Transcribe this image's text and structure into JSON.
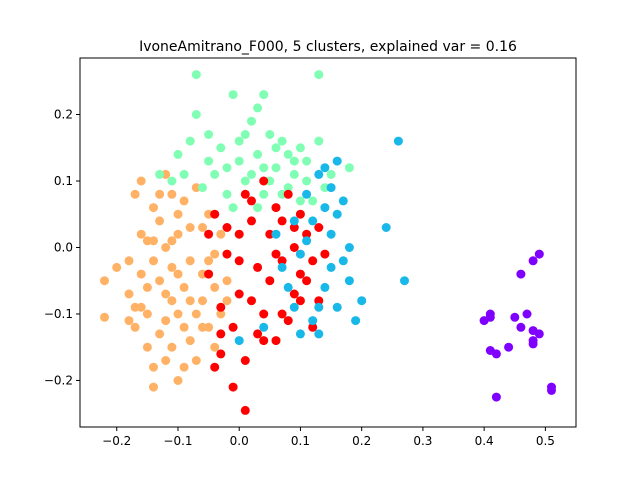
{
  "chart_data": {
    "type": "scatter",
    "title": "IvoneAmitrano_F000, 5 clusters, explained var = 0.16",
    "xlabel": "",
    "ylabel": "",
    "xlim": [
      -0.26,
      0.55
    ],
    "ylim": [
      -0.27,
      0.285
    ],
    "x_ticks": [
      -0.2,
      -0.1,
      0.0,
      0.1,
      0.2,
      0.3,
      0.4,
      0.5
    ],
    "x_tick_labels": [
      "−0.2",
      "−0.1",
      "0.0",
      "0.1",
      "0.2",
      "0.3",
      "0.4",
      "0.5"
    ],
    "y_ticks": [
      -0.2,
      -0.1,
      0.0,
      0.1,
      0.2
    ],
    "y_tick_labels": [
      "−0.2",
      "−0.1",
      "0.0",
      "0.1",
      "0.2"
    ],
    "grid": false,
    "legend": "none",
    "series": [
      {
        "color": "#ffb266",
        "points": [
          [
            -0.22,
            -0.05
          ],
          [
            -0.22,
            -0.105
          ],
          [
            -0.2,
            -0.03
          ],
          [
            -0.18,
            -0.02
          ],
          [
            -0.18,
            -0.07
          ],
          [
            -0.18,
            -0.11
          ],
          [
            -0.17,
            -0.12
          ],
          [
            -0.17,
            0.08
          ],
          [
            -0.16,
            0.1
          ],
          [
            -0.16,
            -0.04
          ],
          [
            -0.16,
            -0.09
          ],
          [
            -0.15,
            -0.1
          ],
          [
            -0.15,
            -0.15
          ],
          [
            -0.15,
            0.01
          ],
          [
            -0.14,
            0.06
          ],
          [
            -0.14,
            -0.21
          ],
          [
            -0.14,
            -0.18
          ],
          [
            -0.13,
            -0.13
          ],
          [
            -0.13,
            0.04
          ],
          [
            -0.12,
            -0.07
          ],
          [
            -0.12,
            0.0
          ],
          [
            -0.12,
            0.11
          ],
          [
            -0.11,
            -0.03
          ],
          [
            -0.11,
            -0.15
          ],
          [
            -0.11,
            0.08
          ],
          [
            -0.1,
            -0.1
          ],
          [
            -0.1,
            -0.2
          ],
          [
            -0.1,
            0.05
          ],
          [
            -0.09,
            -0.18
          ],
          [
            -0.09,
            -0.06
          ],
          [
            -0.09,
            0.07
          ],
          [
            -0.08,
            -0.14
          ],
          [
            -0.08,
            -0.02
          ],
          [
            -0.08,
            0.03
          ],
          [
            -0.07,
            -0.1
          ],
          [
            -0.07,
            0.09
          ],
          [
            -0.06,
            -0.08
          ],
          [
            -0.06,
            -0.04
          ],
          [
            -0.06,
            0.03
          ],
          [
            -0.05,
            -0.12
          ],
          [
            -0.05,
            0.05
          ],
          [
            -0.04,
            -0.06
          ],
          [
            -0.04,
            -0.01
          ],
          [
            -0.03,
            -0.1
          ],
          [
            -0.03,
            0.02
          ],
          [
            -0.02,
            -0.05
          ],
          [
            -0.13,
            -0.05
          ],
          [
            -0.14,
            -0.02
          ],
          [
            -0.12,
            -0.11
          ],
          [
            -0.15,
            -0.06
          ],
          [
            -0.1,
            -0.04
          ],
          [
            -0.11,
            0.01
          ],
          [
            -0.09,
            -0.12
          ],
          [
            -0.13,
            0.08
          ],
          [
            -0.16,
            0.02
          ],
          [
            -0.07,
            -0.17
          ],
          [
            -0.12,
            -0.17
          ],
          [
            -0.17,
            -0.09
          ],
          [
            -0.08,
            -0.08
          ],
          [
            -0.1,
            0.02
          ],
          [
            -0.14,
            0.01
          ],
          [
            -0.11,
            -0.08
          ],
          [
            -0.06,
            -0.12
          ],
          [
            -0.05,
            -0.02
          ],
          [
            -0.04,
            -0.15
          ],
          [
            -0.02,
            -0.08
          ]
        ]
      },
      {
        "color": "#80ffb4",
        "points": [
          [
            -0.07,
            0.26
          ],
          [
            -0.01,
            0.23
          ],
          [
            0.03,
            0.21
          ],
          [
            0.04,
            0.23
          ],
          [
            0.13,
            0.26
          ],
          [
            -0.07,
            0.2
          ],
          [
            -0.05,
            0.17
          ],
          [
            -0.03,
            0.15
          ],
          [
            -0.02,
            0.12
          ],
          [
            0.0,
            0.16
          ],
          [
            0.01,
            0.1
          ],
          [
            0.02,
            0.19
          ],
          [
            0.03,
            0.14
          ],
          [
            0.04,
            0.08
          ],
          [
            0.05,
            0.17
          ],
          [
            0.06,
            0.12
          ],
          [
            0.07,
            0.16
          ],
          [
            0.08,
            0.14
          ],
          [
            0.08,
            0.09
          ],
          [
            0.09,
            0.11
          ],
          [
            0.1,
            0.15
          ],
          [
            0.11,
            0.1
          ],
          [
            0.12,
            0.07
          ],
          [
            0.13,
            0.16
          ],
          [
            0.14,
            0.09
          ],
          [
            0.15,
            0.11
          ],
          [
            0.18,
            0.12
          ],
          [
            -0.1,
            0.14
          ],
          [
            -0.09,
            0.11
          ],
          [
            -0.08,
            0.16
          ],
          [
            -0.06,
            0.09
          ],
          [
            -0.05,
            0.13
          ],
          [
            -0.04,
            0.11
          ],
          [
            -0.02,
            0.08
          ],
          [
            0.0,
            0.13
          ],
          [
            0.02,
            0.11
          ],
          [
            0.03,
            0.06
          ],
          [
            0.05,
            0.1
          ],
          [
            0.06,
            0.15
          ],
          [
            0.07,
            0.08
          ],
          [
            0.09,
            0.13
          ],
          [
            0.1,
            0.07
          ],
          [
            0.11,
            0.13
          ],
          [
            -0.13,
            0.11
          ],
          [
            -0.11,
            0.1
          ],
          [
            -0.01,
            0.06
          ],
          [
            0.01,
            0.17
          ],
          [
            0.04,
            0.12
          ]
        ]
      },
      {
        "color": "#ff0000",
        "points": [
          [
            0.01,
            -0.245
          ],
          [
            -0.01,
            -0.21
          ],
          [
            -0.04,
            -0.18
          ],
          [
            -0.03,
            -0.16
          ],
          [
            0.01,
            -0.17
          ],
          [
            0.04,
            -0.14
          ],
          [
            0.07,
            -0.1
          ],
          [
            0.09,
            -0.07
          ],
          [
            0.1,
            -0.04
          ],
          [
            0.12,
            -0.02
          ],
          [
            0.14,
            -0.01
          ],
          [
            0.13,
            0.03
          ],
          [
            0.1,
            0.05
          ],
          [
            0.08,
            0.08
          ],
          [
            0.06,
            0.06
          ],
          [
            0.04,
            0.1
          ],
          [
            0.02,
            0.04
          ],
          [
            0.0,
            0.02
          ],
          [
            -0.02,
            -0.01
          ],
          [
            -0.04,
            0.05
          ],
          [
            -0.05,
            -0.04
          ],
          [
            -0.03,
            -0.09
          ],
          [
            -0.01,
            -0.12
          ],
          [
            0.02,
            -0.08
          ],
          [
            0.05,
            -0.05
          ],
          [
            0.07,
            -0.02
          ],
          [
            0.09,
            0.0
          ],
          [
            0.11,
            0.02
          ],
          [
            0.08,
            -0.11
          ],
          [
            0.06,
            -0.14
          ],
          [
            0.03,
            -0.13
          ],
          [
            0.0,
            -0.07
          ],
          [
            -0.02,
            0.03
          ],
          [
            0.01,
            0.08
          ],
          [
            0.05,
            0.02
          ],
          [
            0.07,
            0.04
          ],
          [
            0.03,
            -0.03
          ],
          [
            0.1,
            -0.08
          ],
          [
            0.12,
            -0.12
          ],
          [
            0.13,
            -0.08
          ],
          [
            -0.05,
            0.02
          ],
          [
            -0.03,
            -0.13
          ],
          [
            0.0,
            -0.02
          ],
          [
            0.04,
            -0.1
          ],
          [
            0.06,
            -0.01
          ],
          [
            0.11,
            -0.05
          ],
          [
            0.09,
            0.03
          ],
          [
            0.02,
            0.07
          ]
        ]
      },
      {
        "color": "#18b8e8",
        "points": [
          [
            0.26,
            0.16
          ],
          [
            0.27,
            -0.05
          ],
          [
            0.24,
            0.03
          ],
          [
            0.2,
            -0.08
          ],
          [
            0.19,
            -0.11
          ],
          [
            0.18,
            0.0
          ],
          [
            0.17,
            0.07
          ],
          [
            0.16,
            0.13
          ],
          [
            0.15,
            -0.03
          ],
          [
            0.14,
            -0.06
          ],
          [
            0.13,
            0.11
          ],
          [
            0.12,
            -0.11
          ],
          [
            0.11,
            0.08
          ],
          [
            0.1,
            -0.01
          ],
          [
            0.09,
            0.04
          ],
          [
            0.08,
            -0.06
          ],
          [
            0.17,
            -0.02
          ],
          [
            0.16,
            0.05
          ],
          [
            0.15,
            0.02
          ],
          [
            0.14,
            0.06
          ],
          [
            0.13,
            -0.09
          ],
          [
            0.12,
            0.04
          ],
          [
            0.18,
            -0.05
          ],
          [
            0.1,
            -0.13
          ],
          [
            0.09,
            -0.09
          ],
          [
            0.11,
            0.01
          ],
          [
            0.07,
            -0.03
          ],
          [
            0.16,
            -0.09
          ],
          [
            0.15,
            0.09
          ],
          [
            0.04,
            -0.12
          ],
          [
            0.06,
            0.02
          ],
          [
            0.0,
            -0.14
          ],
          [
            0.13,
            -0.13
          ],
          [
            0.14,
            0.12
          ]
        ]
      },
      {
        "color": "#8000ff",
        "points": [
          [
            0.51,
            -0.21
          ],
          [
            0.51,
            -0.215
          ],
          [
            0.49,
            -0.01
          ],
          [
            0.48,
            -0.02
          ],
          [
            0.46,
            -0.04
          ],
          [
            0.48,
            -0.125
          ],
          [
            0.49,
            -0.13
          ],
          [
            0.48,
            -0.14
          ],
          [
            0.48,
            -0.145
          ],
          [
            0.47,
            -0.1
          ],
          [
            0.46,
            -0.12
          ],
          [
            0.45,
            -0.105
          ],
          [
            0.44,
            -0.15
          ],
          [
            0.42,
            -0.16
          ],
          [
            0.41,
            -0.155
          ],
          [
            0.42,
            -0.225
          ],
          [
            0.41,
            -0.1
          ],
          [
            0.41,
            -0.105
          ],
          [
            0.4,
            -0.11
          ]
        ]
      }
    ]
  }
}
